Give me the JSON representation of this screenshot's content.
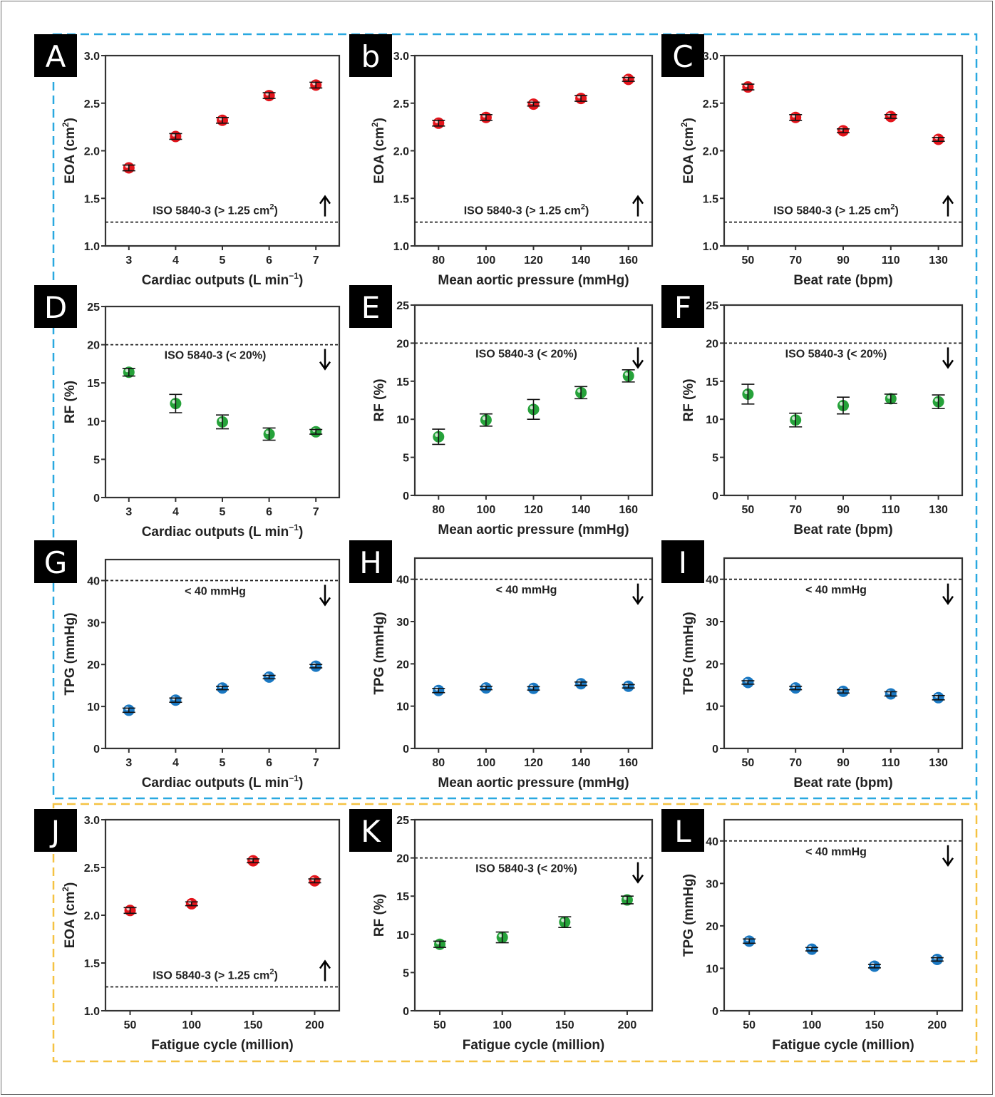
{
  "figure": {
    "group_box_colors": {
      "hemodynamics": "#29a8e0",
      "fatigue": "#f5c242"
    },
    "marker_colors": {
      "eoa": "#e3141b",
      "rf": "#26a23a",
      "tpg": "#1a78c2"
    }
  },
  "chart_data": [
    {
      "panel": "A",
      "type": "scatter",
      "metric": "eoa",
      "xlabel": "Cardiac outputs (L min",
      "xlabel_sup": "−1",
      "xlabel_tail": ")",
      "ylabel": "EOA (cm",
      "ylabel_sup": "2",
      "ylabel_tail": ")",
      "x": [
        3,
        4,
        5,
        6,
        7
      ],
      "x_ticks": [
        "3",
        "4",
        "5",
        "6",
        "7"
      ],
      "xlim": [
        2.5,
        7.5
      ],
      "y": [
        1.82,
        2.15,
        2.32,
        2.58,
        2.69
      ],
      "y_err": [
        0.03,
        0.03,
        0.03,
        0.03,
        0.03
      ],
      "ylim": [
        1.0,
        3.0
      ],
      "y_ticks": [
        "1.0",
        "1.5",
        "2.0",
        "2.5",
        "3.0"
      ],
      "y_tick_values": [
        1.0,
        1.5,
        2.0,
        2.5,
        3.0
      ],
      "threshold": {
        "value": 1.25,
        "label": "ISO 5840-3 (> 1.25 cm",
        "label_sup": "2",
        "label_tail": ")",
        "direction": "up"
      },
      "grid": false
    },
    {
      "panel": "b",
      "type": "scatter",
      "metric": "eoa",
      "xlabel": "Mean aortic pressure (mmHg)",
      "xlabel_sup": "",
      "xlabel_tail": "",
      "ylabel": "EOA (cm",
      "ylabel_sup": "2",
      "ylabel_tail": ")",
      "x": [
        80,
        100,
        120,
        140,
        160
      ],
      "x_ticks": [
        "80",
        "100",
        "120",
        "140",
        "160"
      ],
      "xlim": [
        70,
        170
      ],
      "y": [
        2.29,
        2.35,
        2.49,
        2.55,
        2.75
      ],
      "y_err": [
        0.03,
        0.03,
        0.02,
        0.03,
        0.02
      ],
      "ylim": [
        1.0,
        3.0
      ],
      "y_ticks": [
        "1.0",
        "1.5",
        "2.0",
        "2.5",
        "3.0"
      ],
      "y_tick_values": [
        1.0,
        1.5,
        2.0,
        2.5,
        3.0
      ],
      "threshold": {
        "value": 1.25,
        "label": "ISO 5840-3 (> 1.25 cm",
        "label_sup": "2",
        "label_tail": ")",
        "direction": "up"
      },
      "grid": false
    },
    {
      "panel": "C",
      "type": "scatter",
      "metric": "eoa",
      "xlabel": "Beat rate (bpm)",
      "xlabel_sup": "",
      "xlabel_tail": "",
      "ylabel": "EOA (cm",
      "ylabel_sup": "2",
      "ylabel_tail": ")",
      "x": [
        50,
        70,
        90,
        110,
        130
      ],
      "x_ticks": [
        "50",
        "70",
        "90",
        "110",
        "130"
      ],
      "xlim": [
        40,
        140
      ],
      "y": [
        2.67,
        2.35,
        2.21,
        2.36,
        2.12
      ],
      "y_err": [
        0.03,
        0.03,
        0.02,
        0.02,
        0.02
      ],
      "ylim": [
        1.0,
        3.0
      ],
      "y_ticks": [
        "1.0",
        "1.5",
        "2.0",
        "2.5",
        "3.0"
      ],
      "y_tick_values": [
        1.0,
        1.5,
        2.0,
        2.5,
        3.0
      ],
      "threshold": {
        "value": 1.25,
        "label": "ISO 5840-3 (> 1.25 cm",
        "label_sup": "2",
        "label_tail": ")",
        "direction": "up"
      },
      "grid": false
    },
    {
      "panel": "D",
      "type": "scatter",
      "metric": "rf",
      "xlabel": "Cardiac outputs (L min",
      "xlabel_sup": "−1",
      "xlabel_tail": ")",
      "ylabel": "RF (%)",
      "ylabel_sup": "",
      "ylabel_tail": "",
      "x": [
        3,
        4,
        5,
        6,
        7
      ],
      "x_ticks": [
        "3",
        "4",
        "5",
        "6",
        "7"
      ],
      "xlim": [
        2.5,
        7.5
      ],
      "y": [
        16.4,
        12.3,
        9.9,
        8.3,
        8.6
      ],
      "y_err": [
        0.5,
        1.2,
        0.9,
        0.8,
        0.3
      ],
      "ylim": [
        0,
        25
      ],
      "y_ticks": [
        "0",
        "5",
        "10",
        "15",
        "20",
        "25"
      ],
      "y_tick_values": [
        0,
        5,
        10,
        15,
        20,
        25
      ],
      "threshold": {
        "value": 20,
        "label": "ISO 5840-3 (< 20%)",
        "label_sup": "",
        "label_tail": "",
        "direction": "down"
      },
      "grid": false
    },
    {
      "panel": "E",
      "type": "scatter",
      "metric": "rf",
      "xlabel": "Mean aortic pressure (mmHg)",
      "xlabel_sup": "",
      "xlabel_tail": "",
      "ylabel": "RF (%)",
      "ylabel_sup": "",
      "ylabel_tail": "",
      "x": [
        80,
        100,
        120,
        140,
        160
      ],
      "x_ticks": [
        "80",
        "100",
        "120",
        "140",
        "160"
      ],
      "xlim": [
        70,
        170
      ],
      "y": [
        7.7,
        9.9,
        11.3,
        13.5,
        15.7
      ],
      "y_err": [
        1.0,
        0.8,
        1.3,
        0.8,
        0.8
      ],
      "ylim": [
        0,
        25
      ],
      "y_ticks": [
        "0",
        "5",
        "10",
        "15",
        "20",
        "25"
      ],
      "y_tick_values": [
        0,
        5,
        10,
        15,
        20,
        25
      ],
      "threshold": {
        "value": 20,
        "label": "ISO 5840-3 (< 20%)",
        "label_sup": "",
        "label_tail": "",
        "direction": "down"
      },
      "grid": false
    },
    {
      "panel": "F",
      "type": "scatter",
      "metric": "rf",
      "xlabel": "Beat rate (bpm)",
      "xlabel_sup": "",
      "xlabel_tail": "",
      "ylabel": "RF (%)",
      "ylabel_sup": "",
      "ylabel_tail": "",
      "x": [
        50,
        70,
        90,
        110,
        130
      ],
      "x_ticks": [
        "50",
        "70",
        "90",
        "110",
        "130"
      ],
      "xlim": [
        40,
        140
      ],
      "y": [
        13.3,
        9.9,
        11.8,
        12.7,
        12.3
      ],
      "y_err": [
        1.3,
        0.9,
        1.1,
        0.6,
        0.9
      ],
      "ylim": [
        0,
        25
      ],
      "y_ticks": [
        "0",
        "5",
        "10",
        "15",
        "20",
        "25"
      ],
      "y_tick_values": [
        0,
        5,
        10,
        15,
        20,
        25
      ],
      "threshold": {
        "value": 20,
        "label": "ISO 5840-3 (< 20%)",
        "label_sup": "",
        "label_tail": "",
        "direction": "down"
      },
      "grid": false
    },
    {
      "panel": "G",
      "type": "scatter",
      "metric": "tpg",
      "xlabel": "Cardiac outputs (L min",
      "xlabel_sup": "−1",
      "xlabel_tail": ")",
      "ylabel": "TPG (mmHg)",
      "ylabel_sup": "",
      "ylabel_tail": "",
      "x": [
        3,
        4,
        5,
        6,
        7
      ],
      "x_ticks": [
        "3",
        "4",
        "5",
        "6",
        "7"
      ],
      "xlim": [
        2.5,
        7.5
      ],
      "y": [
        9.1,
        11.5,
        14.4,
        17.0,
        19.6
      ],
      "y_err": [
        0.5,
        0.5,
        0.4,
        0.4,
        0.4
      ],
      "ylim": [
        0,
        45
      ],
      "y_ticks": [
        "0",
        "10",
        "20",
        "30",
        "40"
      ],
      "y_tick_values": [
        0,
        10,
        20,
        30,
        40
      ],
      "threshold": {
        "value": 40,
        "label": "< 40 mmHg",
        "label_sup": "",
        "label_tail": "",
        "direction": "down"
      },
      "grid": false
    },
    {
      "panel": "H",
      "type": "scatter",
      "metric": "tpg",
      "xlabel": "Mean aortic pressure (mmHg)",
      "xlabel_sup": "",
      "xlabel_tail": "",
      "ylabel": "TPG (mmHg)",
      "ylabel_sup": "",
      "ylabel_tail": "",
      "x": [
        80,
        100,
        120,
        140,
        160
      ],
      "x_ticks": [
        "80",
        "100",
        "120",
        "140",
        "160"
      ],
      "xlim": [
        70,
        170
      ],
      "y": [
        13.7,
        14.3,
        14.2,
        15.3,
        14.7
      ],
      "y_err": [
        0.5,
        0.4,
        0.4,
        0.4,
        0.4
      ],
      "ylim": [
        0,
        45
      ],
      "y_ticks": [
        "0",
        "10",
        "20",
        "30",
        "40"
      ],
      "y_tick_values": [
        0,
        10,
        20,
        30,
        40
      ],
      "threshold": {
        "value": 40,
        "label": "< 40 mmHg",
        "label_sup": "",
        "label_tail": "",
        "direction": "down"
      },
      "grid": false
    },
    {
      "panel": "I",
      "type": "scatter",
      "metric": "tpg",
      "xlabel": "Beat rate (bpm)",
      "xlabel_sup": "",
      "xlabel_tail": "",
      "ylabel": "TPG (mmHg)",
      "ylabel_sup": "",
      "ylabel_tail": "",
      "x": [
        50,
        70,
        90,
        110,
        130
      ],
      "x_ticks": [
        "50",
        "70",
        "90",
        "110",
        "130"
      ],
      "xlim": [
        40,
        140
      ],
      "y": [
        15.6,
        14.3,
        13.5,
        12.9,
        12.0
      ],
      "y_err": [
        0.4,
        0.4,
        0.4,
        0.5,
        0.5
      ],
      "ylim": [
        0,
        45
      ],
      "y_ticks": [
        "0",
        "10",
        "20",
        "30",
        "40"
      ],
      "y_tick_values": [
        0,
        10,
        20,
        30,
        40
      ],
      "threshold": {
        "value": 40,
        "label": "< 40 mmHg",
        "label_sup": "",
        "label_tail": "",
        "direction": "down"
      },
      "grid": false
    },
    {
      "panel": "J",
      "type": "scatter",
      "metric": "eoa",
      "xlabel": "Fatigue cycle (million)",
      "xlabel_sup": "",
      "xlabel_tail": "",
      "ylabel": "EOA (cm",
      "ylabel_sup": "2",
      "ylabel_tail": ")",
      "x": [
        50,
        100,
        150,
        200
      ],
      "x_ticks": [
        "50",
        "100",
        "150",
        "200"
      ],
      "xlim": [
        30,
        220
      ],
      "y": [
        2.05,
        2.12,
        2.57,
        2.36
      ],
      "y_err": [
        0.03,
        0.02,
        0.02,
        0.02
      ],
      "ylim": [
        1.0,
        3.0
      ],
      "y_ticks": [
        "1.0",
        "1.5",
        "2.0",
        "2.5",
        "3.0"
      ],
      "y_tick_values": [
        1.0,
        1.5,
        2.0,
        2.5,
        3.0
      ],
      "threshold": {
        "value": 1.25,
        "label": "ISO 5840-3 (> 1.25 cm",
        "label_sup": "2",
        "label_tail": ")",
        "direction": "up"
      },
      "grid": false
    },
    {
      "panel": "K",
      "type": "scatter",
      "metric": "rf",
      "xlabel": "Fatigue cycle (million)",
      "xlabel_sup": "",
      "xlabel_tail": "",
      "ylabel": "RF (%)",
      "ylabel_sup": "",
      "ylabel_tail": "",
      "x": [
        50,
        100,
        150,
        200
      ],
      "x_ticks": [
        "50",
        "100",
        "150",
        "200"
      ],
      "xlim": [
        30,
        220
      ],
      "y": [
        8.7,
        9.6,
        11.6,
        14.5
      ],
      "y_err": [
        0.4,
        0.7,
        0.7,
        0.5
      ],
      "ylim": [
        0,
        25
      ],
      "y_ticks": [
        "0",
        "5",
        "10",
        "15",
        "20",
        "25"
      ],
      "y_tick_values": [
        0,
        5,
        10,
        15,
        20,
        25
      ],
      "threshold": {
        "value": 20,
        "label": "ISO 5840-3 (< 20%)",
        "label_sup": "",
        "label_tail": "",
        "direction": "down"
      },
      "grid": false
    },
    {
      "panel": "L",
      "type": "scatter",
      "metric": "tpg",
      "xlabel": "Fatigue cycle (million)",
      "xlabel_sup": "",
      "xlabel_tail": "",
      "ylabel": "TPG (mmHg)",
      "ylabel_sup": "",
      "ylabel_tail": "",
      "x": [
        50,
        100,
        150,
        200
      ],
      "x_ticks": [
        "50",
        "100",
        "150",
        "200"
      ],
      "xlim": [
        30,
        220
      ],
      "y": [
        16.4,
        14.5,
        10.5,
        12.1
      ],
      "y_err": [
        0.5,
        0.4,
        0.4,
        0.4
      ],
      "ylim": [
        0,
        45
      ],
      "y_ticks": [
        "0",
        "10",
        "20",
        "30",
        "40"
      ],
      "y_tick_values": [
        0,
        10,
        20,
        30,
        40
      ],
      "threshold": {
        "value": 40,
        "label": "< 40 mmHg",
        "label_sup": "",
        "label_tail": "",
        "direction": "down"
      },
      "grid": false
    }
  ]
}
